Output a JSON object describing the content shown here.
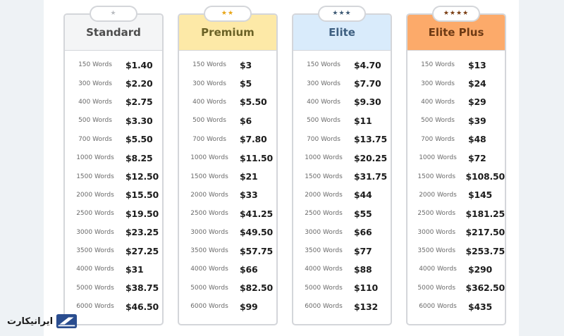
{
  "logo": {
    "text": "ایرانیکارت"
  },
  "plans": [
    {
      "name": "Standard",
      "stars": "★",
      "star_color": "#b9bcc0",
      "header_bg": "#f4f5f6",
      "header_color": "#4d4d4d",
      "rows": [
        {
          "words": "150 Words",
          "price": "$1.40"
        },
        {
          "words": "300 Words",
          "price": "$2.20"
        },
        {
          "words": "400 Words",
          "price": "$2.75"
        },
        {
          "words": "500 Words",
          "price": "$3.30"
        },
        {
          "words": "700 Words",
          "price": "$5.50"
        },
        {
          "words": "1000 Words",
          "price": "$8.25"
        },
        {
          "words": "1500 Words",
          "price": "$12.50"
        },
        {
          "words": "2000 Words",
          "price": "$15.50"
        },
        {
          "words": "2500 Words",
          "price": "$19.50"
        },
        {
          "words": "3000 Words",
          "price": "$23.25"
        },
        {
          "words": "3500 Words",
          "price": "$27.25"
        },
        {
          "words": "4000 Words",
          "price": "$31"
        },
        {
          "words": "5000 Words",
          "price": "$38.75"
        },
        {
          "words": "6000 Words",
          "price": "$46.50"
        }
      ]
    },
    {
      "name": "Premium",
      "stars": "★★",
      "star_color": "#e8a516",
      "header_bg": "#fde9a7",
      "header_color": "#6b6226",
      "rows": [
        {
          "words": "150 Words",
          "price": "$3"
        },
        {
          "words": "300 Words",
          "price": "$5"
        },
        {
          "words": "400 Words",
          "price": "$5.50"
        },
        {
          "words": "500 Words",
          "price": "$6"
        },
        {
          "words": "700 Words",
          "price": "$7.80"
        },
        {
          "words": "1000 Words",
          "price": "$11.50"
        },
        {
          "words": "1500 Words",
          "price": "$21"
        },
        {
          "words": "2000 Words",
          "price": "$33"
        },
        {
          "words": "2500 Words",
          "price": "$41.25"
        },
        {
          "words": "3000 Words",
          "price": "$49.50"
        },
        {
          "words": "3500 Words",
          "price": "$57.75"
        },
        {
          "words": "4000 Words",
          "price": "$66"
        },
        {
          "words": "5000 Words",
          "price": "$82.50"
        },
        {
          "words": "6000 Words",
          "price": "$99"
        }
      ]
    },
    {
      "name": "Elite",
      "stars": "★★★",
      "star_color": "#3e5a75",
      "header_bg": "#d9ebfb",
      "header_color": "#3e5f80",
      "rows": [
        {
          "words": "150 Words",
          "price": "$4.70"
        },
        {
          "words": "300 Words",
          "price": "$7.70"
        },
        {
          "words": "400 Words",
          "price": "$9.30"
        },
        {
          "words": "500 Words",
          "price": "$11"
        },
        {
          "words": "700 Words",
          "price": "$13.75"
        },
        {
          "words": "1000 Words",
          "price": "$20.25"
        },
        {
          "words": "1500 Words",
          "price": "$31.75"
        },
        {
          "words": "2000 Words",
          "price": "$44"
        },
        {
          "words": "2500 Words",
          "price": "$55"
        },
        {
          "words": "3000 Words",
          "price": "$66"
        },
        {
          "words": "3500 Words",
          "price": "$77"
        },
        {
          "words": "4000 Words",
          "price": "$88"
        },
        {
          "words": "5000 Words",
          "price": "$110"
        },
        {
          "words": "6000 Words",
          "price": "$132"
        }
      ]
    },
    {
      "name": "Elite Plus",
      "stars": "★★★★",
      "star_color": "#7a3d12",
      "header_bg": "#fcaa6a",
      "header_color": "#6e3a14",
      "rows": [
        {
          "words": "150 Words",
          "price": "$13"
        },
        {
          "words": "300 Words",
          "price": "$24"
        },
        {
          "words": "400 Words",
          "price": "$29"
        },
        {
          "words": "500 Words",
          "price": "$39"
        },
        {
          "words": "700 Words",
          "price": "$48"
        },
        {
          "words": "1000 Words",
          "price": "$72"
        },
        {
          "words": "1500 Words",
          "price": "$108.50"
        },
        {
          "words": "2000 Words",
          "price": "$145"
        },
        {
          "words": "2500 Words",
          "price": "$181.25"
        },
        {
          "words": "3000 Words",
          "price": "$217.50"
        },
        {
          "words": "3500 Words",
          "price": "$253.75"
        },
        {
          "words": "4000 Words",
          "price": "$290"
        },
        {
          "words": "5000 Words",
          "price": "$362.50"
        },
        {
          "words": "6000 Words",
          "price": "$435"
        }
      ]
    }
  ]
}
